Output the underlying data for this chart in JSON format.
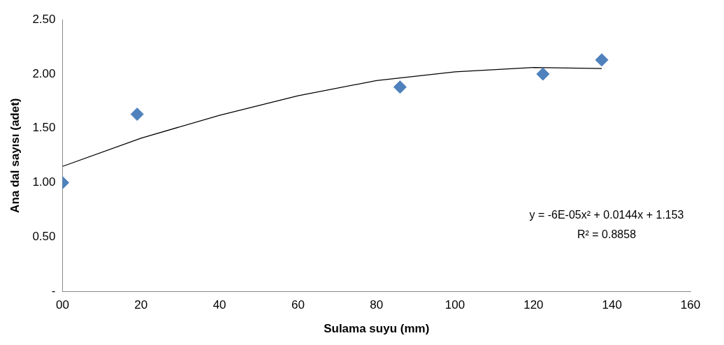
{
  "chart_data": {
    "type": "scatter",
    "xlabel": "Sulama suyu (mm)",
    "ylabel": "Ana dal sayısı (adet)",
    "xlim": [
      0,
      160
    ],
    "xticks": [
      {
        "value": 0,
        "label": "00"
      },
      20,
      40,
      60,
      80,
      100,
      120,
      140,
      160
    ],
    "ylim": [
      0,
      2.5
    ],
    "yticks": [
      {
        "value": 0,
        "label": "-"
      },
      {
        "value": 0.5,
        "label": "0.50"
      },
      {
        "value": 1,
        "label": "1.00"
      },
      {
        "value": 1.5,
        "label": "1.50"
      },
      {
        "value": 2,
        "label": "2.00"
      },
      {
        "value": 2.5,
        "label": "2.50"
      }
    ],
    "grid": false,
    "marker": "diamond",
    "series": [
      {
        "type": "scatter",
        "color": "#4f81bd",
        "x": [
          0,
          19,
          86,
          122.4,
          137.4
        ],
        "values": [
          1.0,
          1.63,
          1.88,
          2.0,
          2.13
        ]
      },
      {
        "type": "line",
        "color": "#000000",
        "marker": "none",
        "x": [
          0,
          20,
          40,
          60,
          80,
          100,
          120,
          137.4
        ],
        "values": [
          1.15,
          1.41,
          1.62,
          1.8,
          1.94,
          2.02,
          2.06,
          2.05
        ]
      }
    ],
    "annotations": [
      "y = -6E-05x² + 0.0144x + 1.153",
      "R² = 0.8858"
    ]
  }
}
